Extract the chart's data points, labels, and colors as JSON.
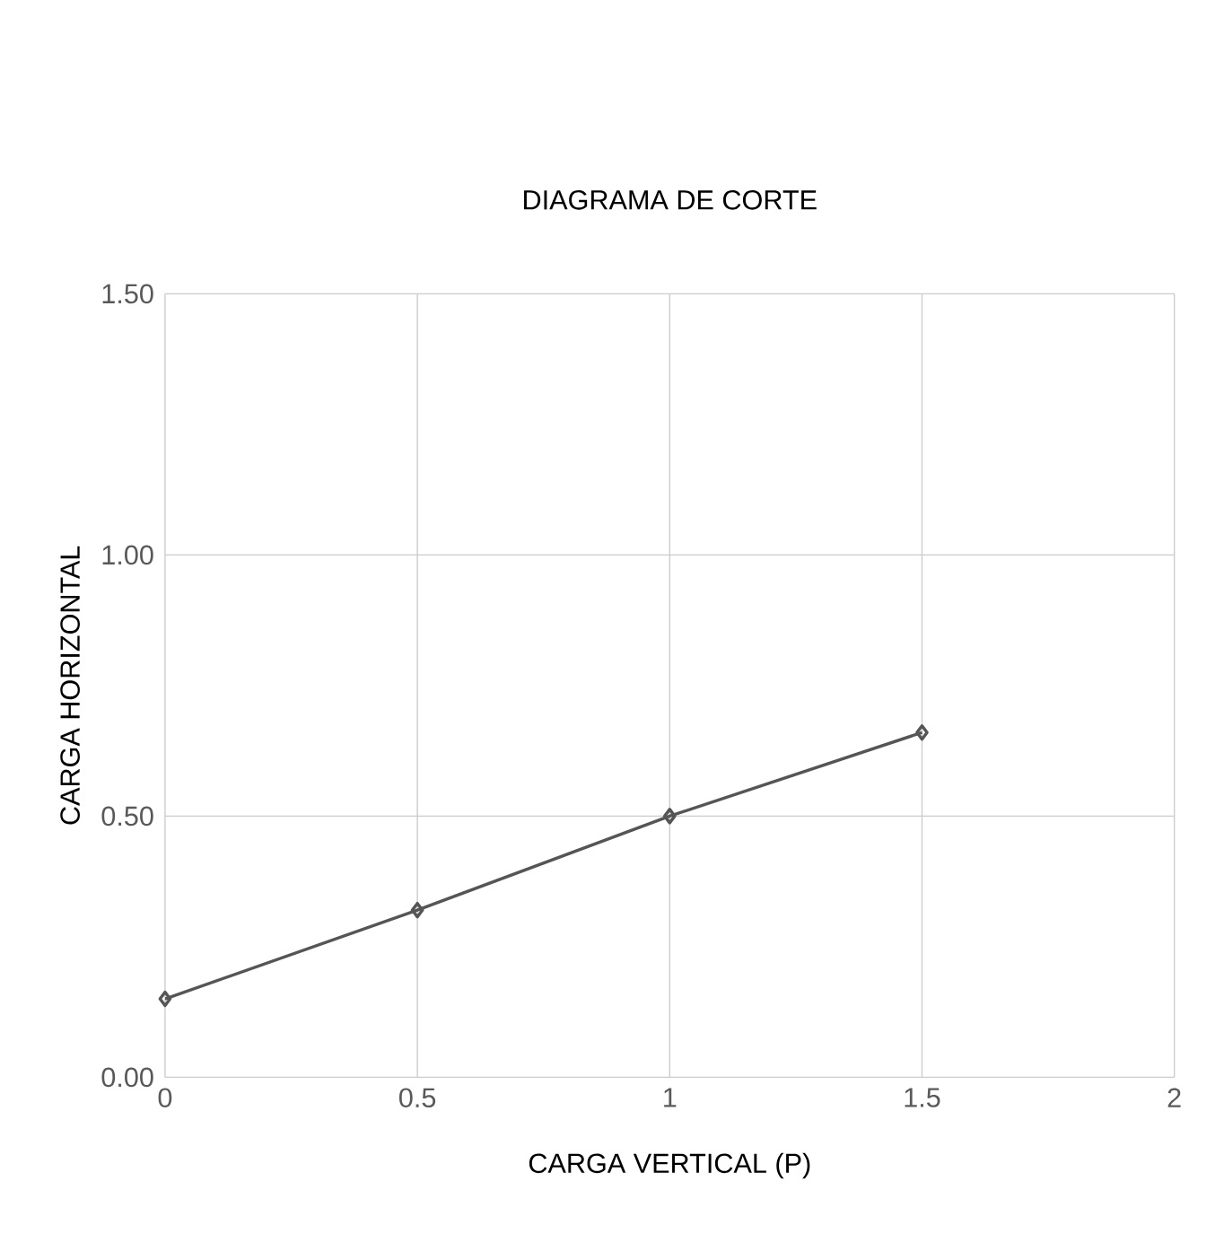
{
  "chart_data": {
    "type": "line",
    "title": "DIAGRAMA DE CORTE",
    "xlabel": "CARGA VERTICAL (P)",
    "ylabel": "CARGA HORIZONTAL",
    "x": [
      0,
      0.5,
      1,
      1.5
    ],
    "series": [
      {
        "color": "#555555",
        "values": [
          0.15,
          0.32,
          0.5,
          0.66
        ]
      }
    ],
    "xlim": [
      0,
      2
    ],
    "xticks": [
      0,
      0.5,
      1,
      1.5,
      2
    ],
    "ylim": [
      0,
      1.5
    ],
    "yticks": [
      {
        "value": 0,
        "label": "0.00"
      },
      {
        "value": 0.5,
        "label": "0.50"
      },
      {
        "value": 1,
        "label": "1.00"
      },
      {
        "value": 1.5,
        "label": "1.50"
      }
    ],
    "grid": true,
    "marker": "diamond",
    "line_style": "solid"
  }
}
